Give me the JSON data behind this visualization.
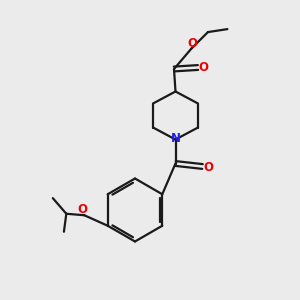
{
  "background_color": "#ebebeb",
  "bond_color": "#1a1a1a",
  "oxygen_color": "#ee0000",
  "nitrogen_color": "#2020ee",
  "line_width": 1.6,
  "figsize": [
    3.0,
    3.0
  ],
  "dpi": 100,
  "xlim": [
    0,
    10
  ],
  "ylim": [
    0,
    10
  ]
}
